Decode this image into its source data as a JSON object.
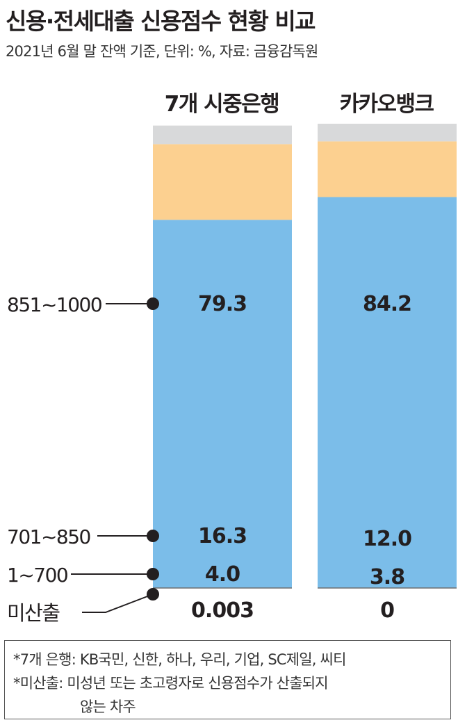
{
  "title": "신용·전세대출 신용점수 현황 비교",
  "subtitle": "2021년 6월 말 잔액 기준, 단위: %, 자료: 금융감독원",
  "colors": {
    "high": "#7bbde9",
    "mid": "#fcd090",
    "low": "#d8d9da",
    "text": "#231f20",
    "line": "#231f20"
  },
  "chart_data": {
    "type": "bar",
    "stacked": true,
    "orientation": "vertical",
    "categories": [
      "7개 시중은행",
      "카카오뱅크"
    ],
    "series": [
      {
        "name": "851~1000",
        "values": [
          79.3,
          84.2
        ],
        "labels": [
          "79.3",
          "84.2"
        ]
      },
      {
        "name": "701~850",
        "values": [
          16.3,
          12.0
        ],
        "labels": [
          "16.3",
          "12.0"
        ]
      },
      {
        "name": "1~700",
        "values": [
          4.0,
          3.8
        ],
        "labels": [
          "4.0",
          "3.8"
        ]
      },
      {
        "name": "미산출",
        "values": [
          0.003,
          0
        ],
        "labels": [
          "0.003",
          "0"
        ]
      }
    ],
    "ylim": [
      0,
      100
    ],
    "legend": "left"
  },
  "notes": [
    "*7개 은행: KB국민, 신한, 하나, 우리, 기업, SC제일, 씨티",
    "*미산출: 미성년 또는 초고령자로 신용점수가 산출되지",
    "않는 차주"
  ]
}
